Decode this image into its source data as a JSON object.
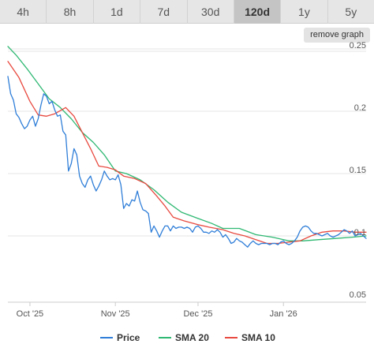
{
  "tabs": [
    {
      "label": "4h",
      "active": false
    },
    {
      "label": "8h",
      "active": false
    },
    {
      "label": "1d",
      "active": false
    },
    {
      "label": "7d",
      "active": false
    },
    {
      "label": "30d",
      "active": false
    },
    {
      "label": "120d",
      "active": true
    },
    {
      "label": "1y",
      "active": false
    },
    {
      "label": "5y",
      "active": false
    }
  ],
  "remove_graph_label": "remove graph",
  "colors": {
    "price": "#2f7ed8",
    "sma20": "#2eb872",
    "sma10": "#e8493f",
    "grid": "#e6e6e6"
  },
  "chart_data": {
    "type": "line",
    "x_start": "2025-09-23",
    "x_end": "2026-01-31",
    "xticks": [
      {
        "date": "2025-10-01",
        "label": "Oct '25"
      },
      {
        "date": "2025-11-01",
        "label": "Nov '25"
      },
      {
        "date": "2025-12-01",
        "label": "Dec '25"
      },
      {
        "date": "2026-01-01",
        "label": "Jan '26"
      }
    ],
    "yticks": [
      0.05,
      0.1,
      0.15,
      0.2,
      0.25
    ],
    "ylim": [
      0.05,
      0.25
    ],
    "y_axis_side": "right",
    "grid": true,
    "legend_position": "bottom",
    "series": [
      {
        "name": "Price",
        "color_key": "price",
        "points": [
          [
            "2025-09-23",
            0.228
          ],
          [
            "2025-09-24",
            0.214
          ],
          [
            "2025-09-25",
            0.209
          ],
          [
            "2025-09-26",
            0.198
          ],
          [
            "2025-09-27",
            0.195
          ],
          [
            "2025-09-28",
            0.19
          ],
          [
            "2025-09-29",
            0.186
          ],
          [
            "2025-09-30",
            0.188
          ],
          [
            "2025-10-01",
            0.193
          ],
          [
            "2025-10-02",
            0.196
          ],
          [
            "2025-10-03",
            0.188
          ],
          [
            "2025-10-04",
            0.194
          ],
          [
            "2025-10-05",
            0.205
          ],
          [
            "2025-10-06",
            0.214
          ],
          [
            "2025-10-07",
            0.212
          ],
          [
            "2025-10-08",
            0.206
          ],
          [
            "2025-10-09",
            0.208
          ],
          [
            "2025-10-10",
            0.201
          ],
          [
            "2025-10-11",
            0.196
          ],
          [
            "2025-10-12",
            0.197
          ],
          [
            "2025-10-13",
            0.184
          ],
          [
            "2025-10-14",
            0.181
          ],
          [
            "2025-10-15",
            0.152
          ],
          [
            "2025-10-16",
            0.158
          ],
          [
            "2025-10-17",
            0.17
          ],
          [
            "2025-10-18",
            0.165
          ],
          [
            "2025-10-19",
            0.148
          ],
          [
            "2025-10-20",
            0.142
          ],
          [
            "2025-10-21",
            0.139
          ],
          [
            "2025-10-22",
            0.145
          ],
          [
            "2025-10-23",
            0.148
          ],
          [
            "2025-10-24",
            0.141
          ],
          [
            "2025-10-25",
            0.136
          ],
          [
            "2025-10-26",
            0.14
          ],
          [
            "2025-10-27",
            0.145
          ],
          [
            "2025-10-28",
            0.152
          ],
          [
            "2025-10-29",
            0.148
          ],
          [
            "2025-10-30",
            0.145
          ],
          [
            "2025-10-31",
            0.146
          ],
          [
            "2025-11-01",
            0.145
          ],
          [
            "2025-11-02",
            0.149
          ],
          [
            "2025-11-03",
            0.141
          ],
          [
            "2025-11-04",
            0.122
          ],
          [
            "2025-11-05",
            0.126
          ],
          [
            "2025-11-06",
            0.124
          ],
          [
            "2025-11-07",
            0.129
          ],
          [
            "2025-11-08",
            0.128
          ],
          [
            "2025-11-09",
            0.136
          ],
          [
            "2025-11-10",
            0.127
          ],
          [
            "2025-11-11",
            0.121
          ],
          [
            "2025-11-12",
            0.12
          ],
          [
            "2025-11-13",
            0.118
          ],
          [
            "2025-11-14",
            0.103
          ],
          [
            "2025-11-15",
            0.108
          ],
          [
            "2025-11-16",
            0.104
          ],
          [
            "2025-11-17",
            0.099
          ],
          [
            "2025-11-18",
            0.104
          ],
          [
            "2025-11-19",
            0.108
          ],
          [
            "2025-11-20",
            0.108
          ],
          [
            "2025-11-21",
            0.104
          ],
          [
            "2025-11-22",
            0.108
          ],
          [
            "2025-11-23",
            0.106
          ],
          [
            "2025-11-24",
            0.107
          ],
          [
            "2025-11-25",
            0.107
          ],
          [
            "2025-11-26",
            0.106
          ],
          [
            "2025-11-27",
            0.107
          ],
          [
            "2025-11-28",
            0.106
          ],
          [
            "2025-11-29",
            0.103
          ],
          [
            "2025-11-30",
            0.107
          ],
          [
            "2025-12-01",
            0.108
          ],
          [
            "2025-12-02",
            0.106
          ],
          [
            "2025-12-03",
            0.103
          ],
          [
            "2025-12-04",
            0.103
          ],
          [
            "2025-12-05",
            0.102
          ],
          [
            "2025-12-06",
            0.104
          ],
          [
            "2025-12-07",
            0.103
          ],
          [
            "2025-12-08",
            0.105
          ],
          [
            "2025-12-09",
            0.103
          ],
          [
            "2025-12-10",
            0.099
          ],
          [
            "2025-12-11",
            0.101
          ],
          [
            "2025-12-12",
            0.098
          ],
          [
            "2025-12-13",
            0.094
          ],
          [
            "2025-12-14",
            0.095
          ],
          [
            "2025-12-15",
            0.098
          ],
          [
            "2025-12-16",
            0.096
          ],
          [
            "2025-12-17",
            0.095
          ],
          [
            "2025-12-18",
            0.093
          ],
          [
            "2025-12-19",
            0.091
          ],
          [
            "2025-12-20",
            0.094
          ],
          [
            "2025-12-21",
            0.096
          ],
          [
            "2025-12-22",
            0.094
          ],
          [
            "2025-12-23",
            0.093
          ],
          [
            "2025-12-24",
            0.094
          ],
          [
            "2025-12-25",
            0.094
          ],
          [
            "2025-12-26",
            0.094
          ],
          [
            "2025-12-27",
            0.093
          ],
          [
            "2025-12-28",
            0.094
          ],
          [
            "2025-12-29",
            0.094
          ],
          [
            "2025-12-30",
            0.093
          ],
          [
            "2025-12-31",
            0.095
          ],
          [
            "2026-01-01",
            0.096
          ],
          [
            "2026-01-02",
            0.094
          ],
          [
            "2026-01-03",
            0.093
          ],
          [
            "2026-01-04",
            0.094
          ],
          [
            "2026-01-05",
            0.096
          ],
          [
            "2026-01-06",
            0.099
          ],
          [
            "2026-01-07",
            0.104
          ],
          [
            "2026-01-08",
            0.107
          ],
          [
            "2026-01-09",
            0.108
          ],
          [
            "2026-01-10",
            0.107
          ],
          [
            "2026-01-11",
            0.104
          ],
          [
            "2026-01-12",
            0.102
          ],
          [
            "2026-01-13",
            0.102
          ],
          [
            "2026-01-14",
            0.101
          ],
          [
            "2026-01-15",
            0.1
          ],
          [
            "2026-01-16",
            0.101
          ],
          [
            "2026-01-17",
            0.102
          ],
          [
            "2026-01-18",
            0.1
          ],
          [
            "2026-01-19",
            0.099
          ],
          [
            "2026-01-20",
            0.1
          ],
          [
            "2026-01-21",
            0.101
          ],
          [
            "2026-01-22",
            0.103
          ],
          [
            "2026-01-23",
            0.105
          ],
          [
            "2026-01-24",
            0.104
          ],
          [
            "2026-01-25",
            0.102
          ],
          [
            "2026-01-26",
            0.104
          ],
          [
            "2026-01-27",
            0.1
          ],
          [
            "2026-01-28",
            0.101
          ],
          [
            "2026-01-29",
            0.102
          ],
          [
            "2026-01-30",
            0.1
          ],
          [
            "2026-01-31",
            0.098
          ]
        ]
      },
      {
        "name": "SMA 20",
        "color_key": "sma20",
        "points": [
          [
            "2025-09-23",
            0.252
          ],
          [
            "2025-09-26",
            0.245
          ],
          [
            "2025-09-30",
            0.234
          ],
          [
            "2025-10-04",
            0.222
          ],
          [
            "2025-10-08",
            0.21
          ],
          [
            "2025-10-12",
            0.203
          ],
          [
            "2025-10-16",
            0.194
          ],
          [
            "2025-10-20",
            0.183
          ],
          [
            "2025-10-24",
            0.175
          ],
          [
            "2025-10-28",
            0.165
          ],
          [
            "2025-11-01",
            0.152
          ],
          [
            "2025-11-05",
            0.15
          ],
          [
            "2025-11-10",
            0.145
          ],
          [
            "2025-11-15",
            0.137
          ],
          [
            "2025-11-20",
            0.127
          ],
          [
            "2025-11-25",
            0.119
          ],
          [
            "2025-12-01",
            0.114
          ],
          [
            "2025-12-06",
            0.11
          ],
          [
            "2025-12-10",
            0.106
          ],
          [
            "2025-12-16",
            0.106
          ],
          [
            "2025-12-22",
            0.101
          ],
          [
            "2025-12-28",
            0.099
          ],
          [
            "2026-01-03",
            0.096
          ],
          [
            "2026-01-08",
            0.096
          ],
          [
            "2026-01-14",
            0.097
          ],
          [
            "2026-01-20",
            0.098
          ],
          [
            "2026-01-26",
            0.099
          ],
          [
            "2026-01-31",
            0.1
          ]
        ]
      },
      {
        "name": "SMA 10",
        "color_key": "sma10",
        "points": [
          [
            "2025-09-23",
            0.24
          ],
          [
            "2025-09-27",
            0.227
          ],
          [
            "2025-10-01",
            0.208
          ],
          [
            "2025-10-04",
            0.197
          ],
          [
            "2025-10-07",
            0.196
          ],
          [
            "2025-10-10",
            0.198
          ],
          [
            "2025-10-14",
            0.203
          ],
          [
            "2025-10-17",
            0.196
          ],
          [
            "2025-10-20",
            0.183
          ],
          [
            "2025-10-23",
            0.17
          ],
          [
            "2025-10-26",
            0.156
          ],
          [
            "2025-10-29",
            0.155
          ],
          [
            "2025-11-01",
            0.153
          ],
          [
            "2025-11-04",
            0.148
          ],
          [
            "2025-11-08",
            0.146
          ],
          [
            "2025-11-12",
            0.142
          ],
          [
            "2025-11-16",
            0.132
          ],
          [
            "2025-11-19",
            0.124
          ],
          [
            "2025-11-22",
            0.115
          ],
          [
            "2025-11-26",
            0.112
          ],
          [
            "2025-12-01",
            0.109
          ],
          [
            "2025-12-05",
            0.107
          ],
          [
            "2025-12-10",
            0.105
          ],
          [
            "2025-12-14",
            0.102
          ],
          [
            "2025-12-18",
            0.1
          ],
          [
            "2025-12-22",
            0.097
          ],
          [
            "2025-12-26",
            0.094
          ],
          [
            "2025-12-30",
            0.094
          ],
          [
            "2026-01-03",
            0.095
          ],
          [
            "2026-01-07",
            0.096
          ],
          [
            "2026-01-11",
            0.1
          ],
          [
            "2026-01-15",
            0.103
          ],
          [
            "2026-01-19",
            0.104
          ],
          [
            "2026-01-23",
            0.104
          ],
          [
            "2026-01-27",
            0.103
          ],
          [
            "2026-01-31",
            0.103
          ]
        ]
      }
    ]
  }
}
